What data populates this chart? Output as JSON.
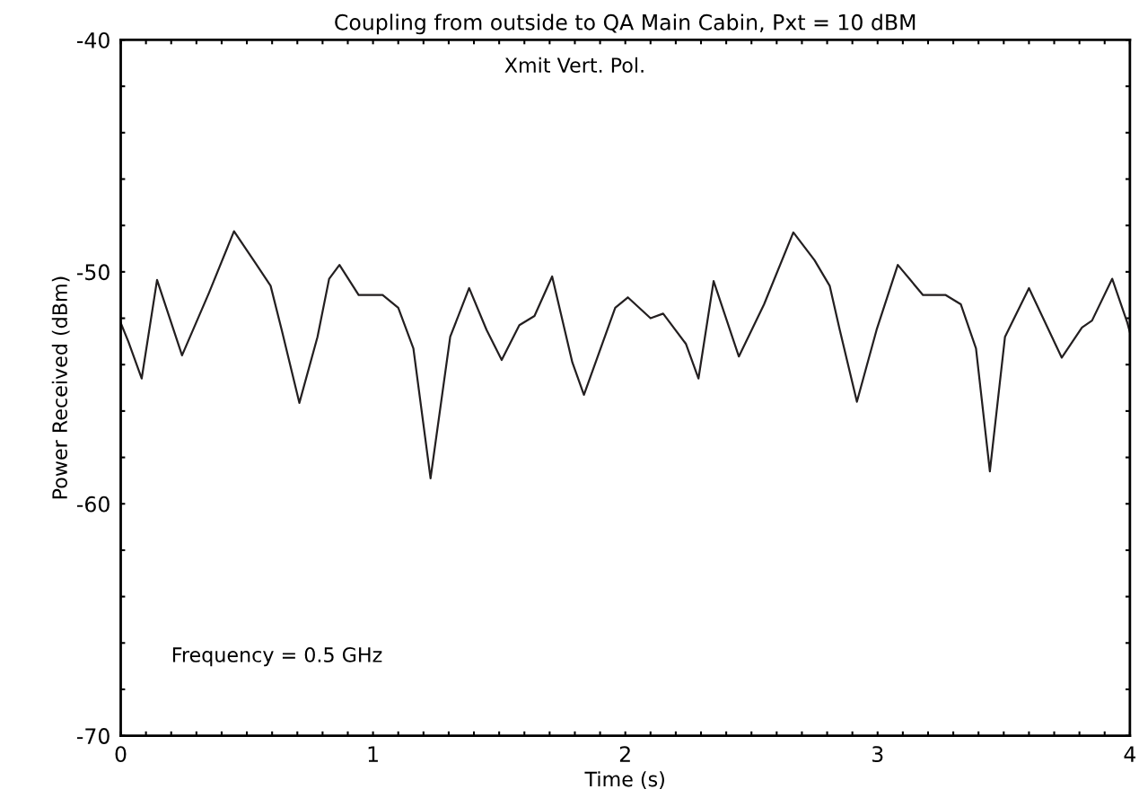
{
  "chart_data": {
    "type": "line",
    "title": "Coupling from outside to QA Main Cabin, Pxt = 10 dBM",
    "xlabel": "Time (s)",
    "ylabel": "Power Received (dBm)",
    "annotations": [
      "Xmit Vert. Pol.",
      "Frequency = 0.5 GHz"
    ],
    "xlim": [
      0,
      4
    ],
    "ylim": [
      -70,
      -40
    ],
    "xticks": [
      0,
      {
        "value": 0.1,
        "label": null
      },
      {
        "value": 0.2,
        "label": null
      },
      {
        "value": 0.3,
        "label": null
      },
      {
        "value": 0.4,
        "label": null
      },
      {
        "value": 0.5,
        "label": null
      },
      {
        "value": 0.6,
        "label": null
      },
      {
        "value": 0.7,
        "label": null
      },
      {
        "value": 0.8,
        "label": null
      },
      {
        "value": 0.9,
        "label": null
      },
      1,
      {
        "value": 1.1,
        "label": null
      },
      {
        "value": 1.2,
        "label": null
      },
      {
        "value": 1.3,
        "label": null
      },
      {
        "value": 1.4,
        "label": null
      },
      {
        "value": 1.5,
        "label": null
      },
      {
        "value": 1.6,
        "label": null
      },
      {
        "value": 1.7,
        "label": null
      },
      {
        "value": 1.8,
        "label": null
      },
      {
        "value": 1.9,
        "label": null
      },
      2,
      {
        "value": 2.1,
        "label": null
      },
      {
        "value": 2.2,
        "label": null
      },
      {
        "value": 2.3,
        "label": null
      },
      {
        "value": 2.4,
        "label": null
      },
      {
        "value": 2.5,
        "label": null
      },
      {
        "value": 2.6,
        "label": null
      },
      {
        "value": 2.7,
        "label": null
      },
      {
        "value": 2.8,
        "label": null
      },
      {
        "value": 2.9,
        "label": null
      },
      3,
      {
        "value": 3.1,
        "label": null
      },
      {
        "value": 3.2,
        "label": null
      },
      {
        "value": 3.3,
        "label": null
      },
      {
        "value": 3.4,
        "label": null
      },
      {
        "value": 3.5,
        "label": null
      },
      {
        "value": 3.6,
        "label": null
      },
      {
        "value": 3.7,
        "label": null
      },
      {
        "value": 3.8,
        "label": null
      },
      {
        "value": 3.9,
        "label": null
      },
      4
    ],
    "yticks": [
      -70,
      {
        "value": -68,
        "label": null
      },
      {
        "value": -66,
        "label": null
      },
      {
        "value": -64,
        "label": null
      },
      {
        "value": -62,
        "label": null
      },
      -60,
      {
        "value": -58,
        "label": null
      },
      {
        "value": -56,
        "label": null
      },
      {
        "value": -54,
        "label": null
      },
      {
        "value": -52,
        "label": null
      },
      -50,
      {
        "value": -48,
        "label": null
      },
      {
        "value": -46,
        "label": null
      },
      {
        "value": -44,
        "label": null
      },
      {
        "value": -42,
        "label": null
      },
      -40
    ],
    "grid": false,
    "legend": false,
    "marker": "none",
    "line_style": "solid",
    "series": [
      {
        "color": "#231f20",
        "x": [
          0,
          0.03,
          0.083,
          0.144,
          0.243,
          0.35,
          0.449,
          0.536,
          0.594,
          0.638,
          0.708,
          0.78,
          0.826,
          0.867,
          0.943,
          1.038,
          1.1,
          1.16,
          1.228,
          1.306,
          1.381,
          1.45,
          1.51,
          1.58,
          1.64,
          1.71,
          1.79,
          1.836,
          1.96,
          2.01,
          2.1,
          2.15,
          2.24,
          2.29,
          2.35,
          2.45,
          2.55,
          2.666,
          2.75,
          2.81,
          2.85,
          2.918,
          2.996,
          3.08,
          3.18,
          3.27,
          3.33,
          3.39,
          3.445,
          3.505,
          3.6,
          3.73,
          3.81,
          3.85,
          3.93,
          3.99,
          4.0
        ],
        "values": [
          -52.2,
          -53.0,
          -54.6,
          -50.35,
          -53.6,
          -50.9,
          -48.25,
          -49.65,
          -50.6,
          -52.5,
          -55.65,
          -52.8,
          -50.3,
          -49.7,
          -51.0,
          -51.0,
          -51.55,
          -53.3,
          -58.9,
          -52.8,
          -50.7,
          -52.5,
          -53.8,
          -52.3,
          -51.9,
          -50.2,
          -53.9,
          -55.3,
          -51.55,
          -51.1,
          -52.0,
          -51.8,
          -53.1,
          -54.6,
          -50.4,
          -53.65,
          -51.4,
          -48.3,
          -49.5,
          -50.6,
          -52.5,
          -55.6,
          -52.5,
          -49.7,
          -51.0,
          -51.0,
          -51.4,
          -53.3,
          -58.6,
          -52.8,
          -50.7,
          -53.7,
          -52.4,
          -52.1,
          -50.3,
          -52.2,
          -52.6
        ]
      }
    ]
  }
}
